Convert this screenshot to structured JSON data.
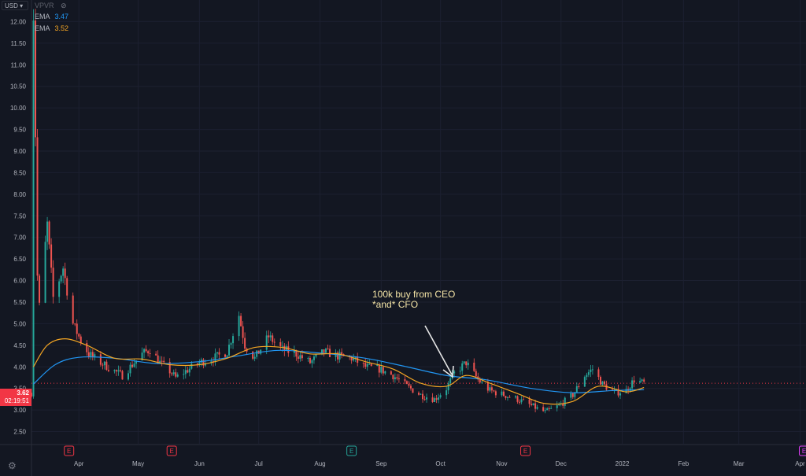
{
  "header": {
    "currency": "USD",
    "indicator": "VPVR",
    "ema1": {
      "label": "EMA",
      "value": "3.47",
      "color": "#2196f3"
    },
    "ema2": {
      "label": "EMA",
      "value": "3.52",
      "color": "#f5a623"
    }
  },
  "last_price": {
    "value": "3.62",
    "countdown": "02:19:51"
  },
  "annotation": {
    "line1": "100k buy from CEO",
    "line2": "*and* CFO"
  },
  "icons": {
    "visibility": "eye-slash-icon",
    "settings": "gear-icon"
  },
  "colors": {
    "up": "#26a69a",
    "down": "#ef5350",
    "ema_fast": "#f5a623",
    "ema_slow": "#2196f3",
    "background": "#131722"
  },
  "chart_data": {
    "type": "candlestick",
    "symbol_indicator": "VPVR",
    "yaxis": {
      "ticks": [
        2.5,
        3.0,
        3.5,
        4.0,
        4.5,
        5.0,
        5.5,
        6.0,
        6.5,
        7.0,
        7.5,
        8.0,
        8.5,
        9.0,
        9.5,
        10.0,
        10.5,
        11.0,
        11.5,
        12.0
      ],
      "ylim": [
        2.2,
        12.5
      ]
    },
    "xaxis": {
      "start": "2021-03-08",
      "end": "2022-04-04",
      "ticks": [
        {
          "label": "Apr",
          "date": "2021-04-01"
        },
        {
          "label": "May",
          "date": "2021-05-01"
        },
        {
          "label": "Jun",
          "date": "2021-06-01"
        },
        {
          "label": "Jul",
          "date": "2021-07-01"
        },
        {
          "label": "Aug",
          "date": "2021-08-01"
        },
        {
          "label": "Sep",
          "date": "2021-09-01"
        },
        {
          "label": "Oct",
          "date": "2021-10-01"
        },
        {
          "label": "Nov",
          "date": "2021-11-01"
        },
        {
          "label": "Dec",
          "date": "2021-12-01"
        },
        {
          "label": "2022",
          "date": "2022-01-01"
        },
        {
          "label": "Feb",
          "date": "2022-02-01"
        },
        {
          "label": "Mar",
          "date": "2022-03-01"
        },
        {
          "label": "Apr",
          "date": "2022-04-01"
        }
      ]
    },
    "earnings_markers": [
      {
        "label": "E",
        "date": "2021-03-27",
        "color": "#f23645"
      },
      {
        "label": "E",
        "date": "2021-05-18",
        "color": "#f23645"
      },
      {
        "label": "E",
        "date": "2021-08-17",
        "color": "#26a69a"
      },
      {
        "label": "E",
        "date": "2021-11-13",
        "color": "#f23645"
      },
      {
        "label": "E",
        "date": "2022-04-03",
        "color": "#e040fb"
      }
    ],
    "current_price": 3.62,
    "close_path": [
      [
        "2021-03-08",
        3.4
      ],
      [
        "2021-03-09",
        12.2
      ],
      [
        "2021-03-10",
        9.4
      ],
      [
        "2021-03-11",
        6.1
      ],
      [
        "2021-03-12",
        5.4
      ],
      [
        "2021-03-16",
        7.3
      ],
      [
        "2021-03-19",
        5.6
      ],
      [
        "2021-03-24",
        6.3
      ],
      [
        "2021-03-29",
        5.0
      ],
      [
        "2021-04-02",
        4.6
      ],
      [
        "2021-04-06",
        4.3
      ],
      [
        "2021-04-12",
        4.1
      ],
      [
        "2021-04-19",
        3.9
      ],
      [
        "2021-04-23",
        3.8
      ],
      [
        "2021-04-27",
        4.0
      ],
      [
        "2021-05-03",
        4.3
      ],
      [
        "2021-05-07",
        4.4
      ],
      [
        "2021-05-12",
        4.1
      ],
      [
        "2021-05-17",
        3.9
      ],
      [
        "2021-05-20",
        3.75
      ],
      [
        "2021-05-25",
        3.9
      ],
      [
        "2021-06-01",
        4.1
      ],
      [
        "2021-06-08",
        4.2
      ],
      [
        "2021-06-15",
        4.35
      ],
      [
        "2021-06-21",
        5.2
      ],
      [
        "2021-06-24",
        4.5
      ],
      [
        "2021-06-29",
        4.2
      ],
      [
        "2021-07-06",
        4.7
      ],
      [
        "2021-07-13",
        4.4
      ],
      [
        "2021-07-20",
        4.3
      ],
      [
        "2021-07-27",
        4.1
      ],
      [
        "2021-08-03",
        4.35
      ],
      [
        "2021-08-10",
        4.25
      ],
      [
        "2021-08-17",
        4.2
      ],
      [
        "2021-08-24",
        4.0
      ],
      [
        "2021-08-31",
        3.95
      ],
      [
        "2021-09-07",
        3.8
      ],
      [
        "2021-09-14",
        3.55
      ],
      [
        "2021-09-21",
        3.35
      ],
      [
        "2021-09-28",
        3.25
      ],
      [
        "2021-10-04",
        3.5
      ],
      [
        "2021-10-08",
        3.85
      ],
      [
        "2021-10-14",
        4.1
      ],
      [
        "2021-10-20",
        3.7
      ],
      [
        "2021-10-26",
        3.45
      ],
      [
        "2021-11-02",
        3.35
      ],
      [
        "2021-11-09",
        3.25
      ],
      [
        "2021-11-16",
        3.1
      ],
      [
        "2021-11-23",
        2.95
      ],
      [
        "2021-11-30",
        3.1
      ],
      [
        "2021-12-07",
        3.35
      ],
      [
        "2021-12-13",
        3.8
      ],
      [
        "2021-12-17",
        3.95
      ],
      [
        "2021-12-22",
        3.6
      ],
      [
        "2021-12-28",
        3.4
      ],
      [
        "2022-01-03",
        3.45
      ],
      [
        "2022-01-07",
        3.7
      ],
      [
        "2022-01-12",
        3.62
      ]
    ],
    "ema_fast_path": [
      [
        "2021-03-09",
        4.0
      ],
      [
        "2021-03-16",
        4.5
      ],
      [
        "2021-03-25",
        4.65
      ],
      [
        "2021-04-05",
        4.5
      ],
      [
        "2021-04-19",
        4.2
      ],
      [
        "2021-05-03",
        4.18
      ],
      [
        "2021-05-17",
        4.05
      ],
      [
        "2021-06-01",
        4.05
      ],
      [
        "2021-06-15",
        4.2
      ],
      [
        "2021-06-29",
        4.45
      ],
      [
        "2021-07-13",
        4.45
      ],
      [
        "2021-07-27",
        4.3
      ],
      [
        "2021-08-10",
        4.3
      ],
      [
        "2021-08-24",
        4.12
      ],
      [
        "2021-09-07",
        3.95
      ],
      [
        "2021-09-21",
        3.62
      ],
      [
        "2021-10-04",
        3.55
      ],
      [
        "2021-10-14",
        3.8
      ],
      [
        "2021-10-26",
        3.62
      ],
      [
        "2021-11-09",
        3.38
      ],
      [
        "2021-11-23",
        3.15
      ],
      [
        "2021-12-07",
        3.2
      ],
      [
        "2021-12-20",
        3.55
      ],
      [
        "2022-01-03",
        3.42
      ],
      [
        "2022-01-12",
        3.52
      ]
    ],
    "ema_slow_path": [
      [
        "2021-03-09",
        3.6
      ],
      [
        "2021-03-20",
        4.05
      ],
      [
        "2021-04-01",
        4.22
      ],
      [
        "2021-04-19",
        4.2
      ],
      [
        "2021-05-10",
        4.08
      ],
      [
        "2021-06-01",
        4.12
      ],
      [
        "2021-06-20",
        4.25
      ],
      [
        "2021-07-10",
        4.38
      ],
      [
        "2021-08-01",
        4.32
      ],
      [
        "2021-08-24",
        4.2
      ],
      [
        "2021-09-14",
        4.0
      ],
      [
        "2021-10-04",
        3.8
      ],
      [
        "2021-10-24",
        3.7
      ],
      [
        "2021-11-16",
        3.5
      ],
      [
        "2021-12-07",
        3.4
      ],
      [
        "2021-12-27",
        3.45
      ],
      [
        "2022-01-12",
        3.47
      ]
    ]
  }
}
